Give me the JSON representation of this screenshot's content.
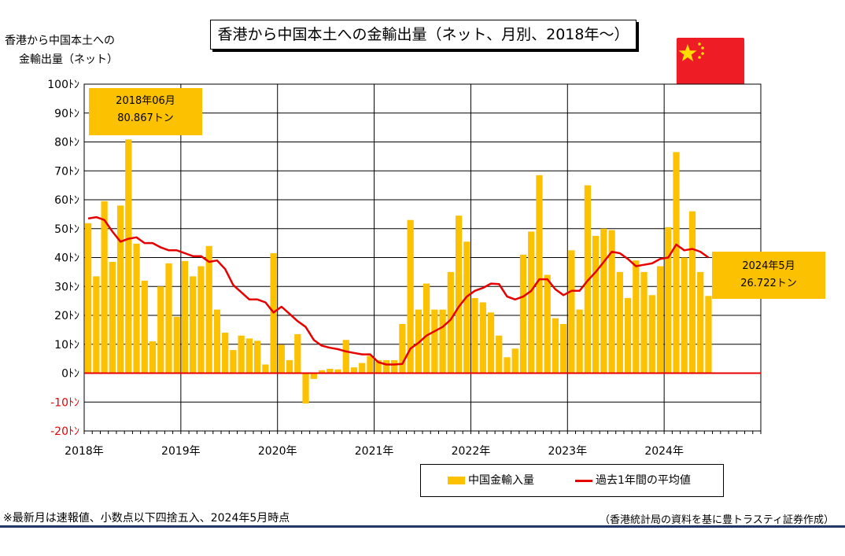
{
  "title": "香港から中国本土への金輸出量（ネット、月別、2018年～）",
  "ylabel_line1": "香港から中国本土への",
  "ylabel_line2": "金輸出量（ネット）",
  "flag_icon": "china-flag-icon",
  "callout_first": {
    "line1": "2018年06月",
    "line2": "80.867トン"
  },
  "callout_last": {
    "line1": "2024年5月",
    "line2": "26.722トン"
  },
  "legend": {
    "bar": "中国金輸入量",
    "line": "過去1年間の平均値"
  },
  "footnote": "※最新月は速報値、小数点以下四捨五入、2024年5月時点",
  "source": "（香港統計局の資料を基に豊トラスティ証券作成）",
  "colors": {
    "bar": "#fcc100",
    "line": "#e60000",
    "zero_line": "#e60000",
    "negative_tick": "#e60000"
  },
  "chart_data": {
    "type": "bar",
    "xlabels": [
      "2018年",
      "2019年",
      "2020年",
      "2021年",
      "2022年",
      "2023年",
      "2024年"
    ],
    "ylim": [
      -20,
      100
    ],
    "yticks": [
      "100ﾄﾝ",
      "90ﾄﾝ",
      "80ﾄﾝ",
      "70ﾄﾝ",
      "60ﾄﾝ",
      "50ﾄﾝ",
      "40ﾄﾝ",
      "30ﾄﾝ",
      "20ﾄﾝ",
      "10ﾄﾝ",
      "0ﾄﾝ",
      "-10ﾄﾝ",
      "-20ﾄﾝ"
    ],
    "x_start": "2018-01",
    "grid": true,
    "series": [
      {
        "name": "中国金輸入量",
        "type": "bar",
        "values": [
          51.9,
          33.5,
          59.5,
          38.5,
          58,
          80.867,
          44.8,
          32,
          11,
          30,
          38,
          19.5,
          38.8,
          33.5,
          37,
          44,
          22,
          14,
          8,
          13,
          12,
          11.2,
          3,
          41.5,
          9.8,
          4.5,
          13.5,
          -10.5,
          -2,
          1,
          1.5,
          1.3,
          11.5,
          2,
          3.5,
          6,
          4.5,
          4.5,
          4.5,
          17,
          53,
          22,
          31,
          22,
          22,
          35,
          54.5,
          45.5,
          26,
          24.5,
          21,
          13,
          5.5,
          8.5,
          41,
          49,
          68.5,
          34,
          19,
          17,
          42.5,
          22,
          65,
          47.5,
          50,
          49.5,
          35,
          26,
          39,
          35,
          27,
          37,
          50.5,
          76.5,
          40,
          56,
          35,
          26.722
        ]
      },
      {
        "name": "過去1年間の平均値",
        "type": "line",
        "values": [
          53.5,
          54,
          53,
          49,
          45.5,
          46.5,
          47,
          45,
          45,
          43.5,
          42.5,
          42.5,
          41.5,
          40.5,
          40.5,
          38.5,
          39,
          36,
          30.5,
          28,
          25.5,
          25.5,
          24.5,
          21,
          23,
          20.5,
          18,
          16,
          11.5,
          9.5,
          8.8,
          8.3,
          7.5,
          7,
          6.5,
          6.5,
          3.8,
          3,
          3,
          3.2,
          8.5,
          10.5,
          13,
          14.5,
          16,
          18.5,
          23,
          26.5,
          28.5,
          29.5,
          31,
          30.8,
          26.5,
          25.5,
          26.5,
          28.5,
          32.5,
          32.5,
          29,
          27,
          28.5,
          28.5,
          32,
          35,
          38.5,
          42,
          41.5,
          39.5,
          37,
          37.5,
          38,
          39.5,
          40,
          44.5,
          42.5,
          43,
          42,
          40
        ]
      }
    ]
  }
}
